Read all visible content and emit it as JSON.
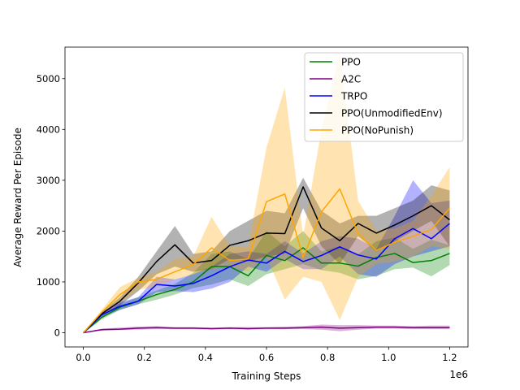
{
  "chart_data": {
    "type": "line",
    "title": "",
    "xlabel": "Training Steps",
    "ylabel": "Average Reward Per Episode",
    "x_offset_label": "1e6",
    "xlim": [
      -0.06,
      1.26
    ],
    "ylim": [
      -280,
      5620
    ],
    "x_ticks": [
      0.0,
      0.2,
      0.4,
      0.6,
      0.8,
      1.0,
      1.2
    ],
    "x_tick_labels": [
      "0.0",
      "0.2",
      "0.4",
      "0.6",
      "0.8",
      "1.0",
      "1.2"
    ],
    "y_ticks": [
      0,
      1000,
      2000,
      3000,
      4000,
      5000
    ],
    "y_tick_labels": [
      "0",
      "1000",
      "2000",
      "3000",
      "4000",
      "5000"
    ],
    "grid": false,
    "legend_position": "top-right",
    "x": [
      0.0,
      0.06,
      0.12,
      0.18,
      0.24,
      0.3,
      0.36,
      0.42,
      0.48,
      0.54,
      0.6,
      0.66,
      0.72,
      0.78,
      0.84,
      0.9,
      0.96,
      1.02,
      1.08,
      1.14,
      1.2
    ],
    "series": [
      {
        "name": "PPO",
        "color": "#008000",
        "values": [
          0,
          300,
          500,
          620,
          750,
          850,
          1000,
          1300,
          1300,
          1120,
          1520,
          1420,
          1670,
          1370,
          1370,
          1310,
          1480,
          1560,
          1380,
          1420,
          1560
        ],
        "lower": [
          0,
          260,
          450,
          560,
          650,
          750,
          880,
          950,
          1050,
          920,
          1150,
          1250,
          1350,
          1230,
          1180,
          1050,
          1120,
          1250,
          1280,
          1110,
          1330
        ],
        "upper": [
          0,
          340,
          560,
          700,
          830,
          960,
          1180,
          1550,
          1600,
          1450,
          2000,
          1700,
          2000,
          1600,
          1700,
          1540,
          1800,
          1870,
          1650,
          1830,
          1720
        ]
      },
      {
        "name": "A2C",
        "color": "#800080",
        "values": [
          0,
          60,
          70,
          90,
          100,
          90,
          90,
          80,
          90,
          80,
          90,
          90,
          100,
          110,
          90,
          100,
          110,
          110,
          100,
          100,
          100
        ],
        "lower": [
          0,
          40,
          50,
          60,
          70,
          70,
          70,
          60,
          70,
          60,
          70,
          70,
          70,
          60,
          30,
          60,
          80,
          80,
          70,
          70,
          70
        ],
        "upper": [
          0,
          80,
          100,
          120,
          130,
          110,
          110,
          100,
          110,
          110,
          110,
          120,
          130,
          160,
          150,
          150,
          140,
          140,
          130,
          140,
          140
        ]
      },
      {
        "name": "TRPO",
        "color": "#0000FF",
        "values": [
          0,
          350,
          520,
          620,
          950,
          920,
          970,
          1120,
          1300,
          1430,
          1370,
          1600,
          1400,
          1520,
          1690,
          1530,
          1450,
          1850,
          2050,
          1850,
          2150
        ],
        "lower": [
          0,
          300,
          450,
          560,
          800,
          820,
          800,
          870,
          1000,
          1300,
          1200,
          1450,
          1250,
          1250,
          1500,
          1150,
          1100,
          1350,
          1500,
          1600,
          1700
        ],
        "upper": [
          0,
          410,
          600,
          700,
          1100,
          1050,
          1150,
          1300,
          1550,
          1600,
          1550,
          1800,
          1560,
          1800,
          1900,
          1850,
          1650,
          2300,
          3000,
          2550,
          2600
        ]
      },
      {
        "name": "PPO(UnmodifiedEnv)",
        "color": "#000000",
        "values": [
          0,
          370,
          620,
          980,
          1400,
          1730,
          1370,
          1420,
          1720,
          1810,
          1960,
          1950,
          2870,
          2060,
          1810,
          2150,
          1960,
          2120,
          2300,
          2500,
          2220
        ],
        "lower": [
          0,
          330,
          540,
          820,
          1150,
          1300,
          1200,
          1250,
          1450,
          1400,
          1500,
          1550,
          2450,
          1700,
          1350,
          1900,
          1600,
          1800,
          2000,
          2200,
          1700
        ],
        "upper": [
          0,
          410,
          700,
          1100,
          1600,
          2100,
          1550,
          1600,
          2000,
          2200,
          2400,
          2350,
          3050,
          2400,
          2150,
          2300,
          2300,
          2450,
          2600,
          2900,
          2800
        ]
      },
      {
        "name": "PPO(NoPunish)",
        "color": "#FFA500",
        "values": [
          0,
          400,
          750,
          1000,
          1050,
          1200,
          1340,
          1670,
          1420,
          1450,
          2580,
          2730,
          1480,
          2380,
          2830,
          1950,
          1620,
          1780,
          1900,
          2030,
          2450
        ],
        "lower": [
          0,
          350,
          600,
          850,
          900,
          1050,
          1150,
          1250,
          1300,
          1200,
          1500,
          650,
          1100,
          1000,
          250,
          1100,
          1350,
          1400,
          1500,
          1700,
          1650
        ],
        "upper": [
          0,
          450,
          900,
          1080,
          1200,
          1450,
          1500,
          2280,
          1700,
          1700,
          3650,
          4820,
          1900,
          4000,
          5520,
          2600,
          2000,
          2050,
          2200,
          2700,
          3260
        ]
      }
    ]
  }
}
